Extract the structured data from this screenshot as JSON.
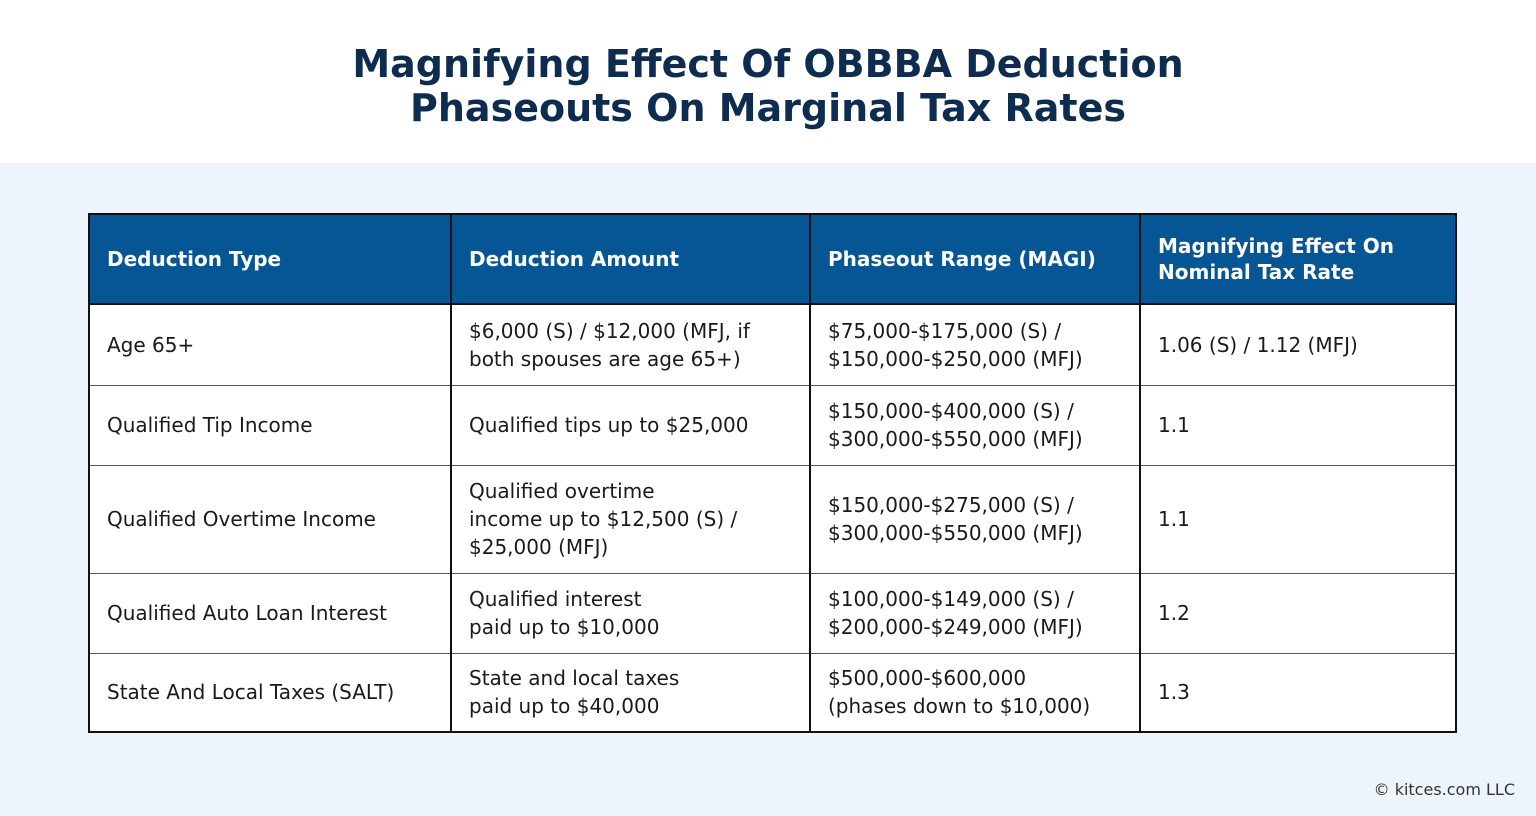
{
  "title": "Magnifying Effect Of OBBBA Deduction\nPhaseouts On Marginal Tax Rates",
  "table": {
    "headers": [
      "Deduction Type",
      "Deduction Amount",
      "Phaseout Range (MAGI)",
      "Magnifying Effect On\nNominal Tax Rate"
    ],
    "rows": [
      [
        "Age 65+",
        "$6,000 (S) / $12,000 (MFJ, if\nboth spouses are age 65+)",
        "$75,000-$175,000 (S) /\n$150,000-$250,000 (MFJ)",
        "1.06 (S) / 1.12 (MFJ)"
      ],
      [
        "Qualified Tip Income",
        "Qualified tips up to $25,000",
        "$150,000-$400,000 (S) /\n$300,000-$550,000 (MFJ)",
        "1.1"
      ],
      [
        "Qualified Overtime Income",
        "Qualified overtime\nincome up to $12,500 (S) /\n$25,000 (MFJ)",
        "$150,000-$275,000 (S) /\n$300,000-$550,000 (MFJ)",
        "1.1"
      ],
      [
        "Qualified Auto Loan Interest",
        "Qualified interest\npaid up to $10,000",
        "$100,000-$149,000 (S) /\n$200,000-$249,000 (MFJ)",
        "1.2"
      ],
      [
        "State And Local Taxes (SALT)",
        "State and local taxes\npaid up to $40,000",
        "$500,000-$600,000\n(phases down to $10,000)",
        "1.3"
      ]
    ]
  },
  "footer": "© kitces.com LLC",
  "colors": {
    "header_bg": "#065594",
    "title": "#0d2c4f",
    "background": "#edf4fc"
  }
}
